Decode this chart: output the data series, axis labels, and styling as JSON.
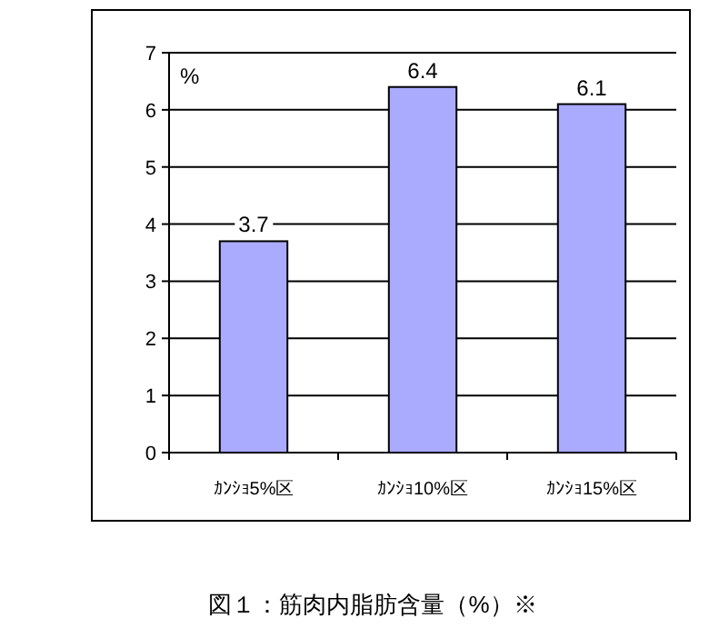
{
  "chart_data": {
    "type": "bar",
    "title": "図１：筋肉内脂肪含量（%）※",
    "ylabel": "%",
    "categories": [
      "ｶﾝｼｮ5%区",
      "ｶﾝｼｮ10%区",
      "ｶﾝｼｮ15%区"
    ],
    "values": [
      3.7,
      6.4,
      6.1
    ],
    "color": "#aaaaff",
    "ylim": [
      0,
      7
    ],
    "yticks": [
      0,
      1,
      2,
      3,
      4,
      5,
      6,
      7
    ],
    "grid": "y",
    "data_labels": true
  }
}
